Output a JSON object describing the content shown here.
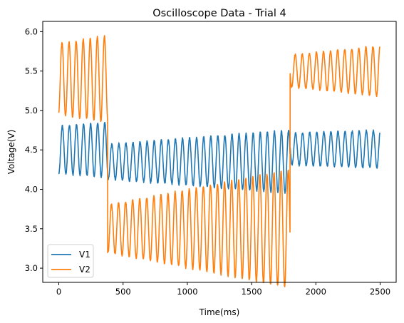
{
  "chart_data": {
    "type": "line",
    "title": "Oscilloscope Data - Trial 4",
    "xlabel": "Time(ms)",
    "ylabel": "Voltage(V)",
    "xlim": [
      -125,
      2625
    ],
    "ylim": [
      2.82,
      6.13
    ],
    "xticks": [
      0,
      500,
      1000,
      1500,
      2000,
      2500
    ],
    "yticks": [
      3.0,
      3.5,
      4.0,
      4.5,
      5.0,
      5.5,
      6.0
    ],
    "grid": false,
    "legend_position": "lower left",
    "series": [
      {
        "name": "V1",
        "color": "#1f77b4",
        "segments": [
          {
            "x_start": 0,
            "x_end": 380,
            "center": 4.5,
            "amplitude": 0.3,
            "amplitude_end": 0.35,
            "period_ms": 55
          },
          {
            "x_start": 380,
            "x_end": 1800,
            "center": 4.35,
            "amplitude": 0.22,
            "amplitude_end": 0.4,
            "period_ms": 55
          },
          {
            "x_start": 1800,
            "x_end": 2500,
            "center": 4.51,
            "amplitude": 0.2,
            "amplitude_end": 0.24,
            "period_ms": 55
          }
        ]
      },
      {
        "name": "V2",
        "color": "#ff7f0e",
        "segments": [
          {
            "x_start": 0,
            "x_end": 380,
            "center": 5.4,
            "amplitude": 0.45,
            "amplitude_end": 0.55,
            "period_ms": 55
          },
          {
            "x_start": 380,
            "x_end": 1800,
            "center": 3.5,
            "amplitude": 0.3,
            "amplitude_end": 0.75,
            "period_ms": 55
          },
          {
            "x_start": 1800,
            "x_end": 2500,
            "center": 5.5,
            "amplitude": 0.2,
            "amplitude_end": 0.32,
            "period_ms": 55
          }
        ]
      }
    ]
  }
}
